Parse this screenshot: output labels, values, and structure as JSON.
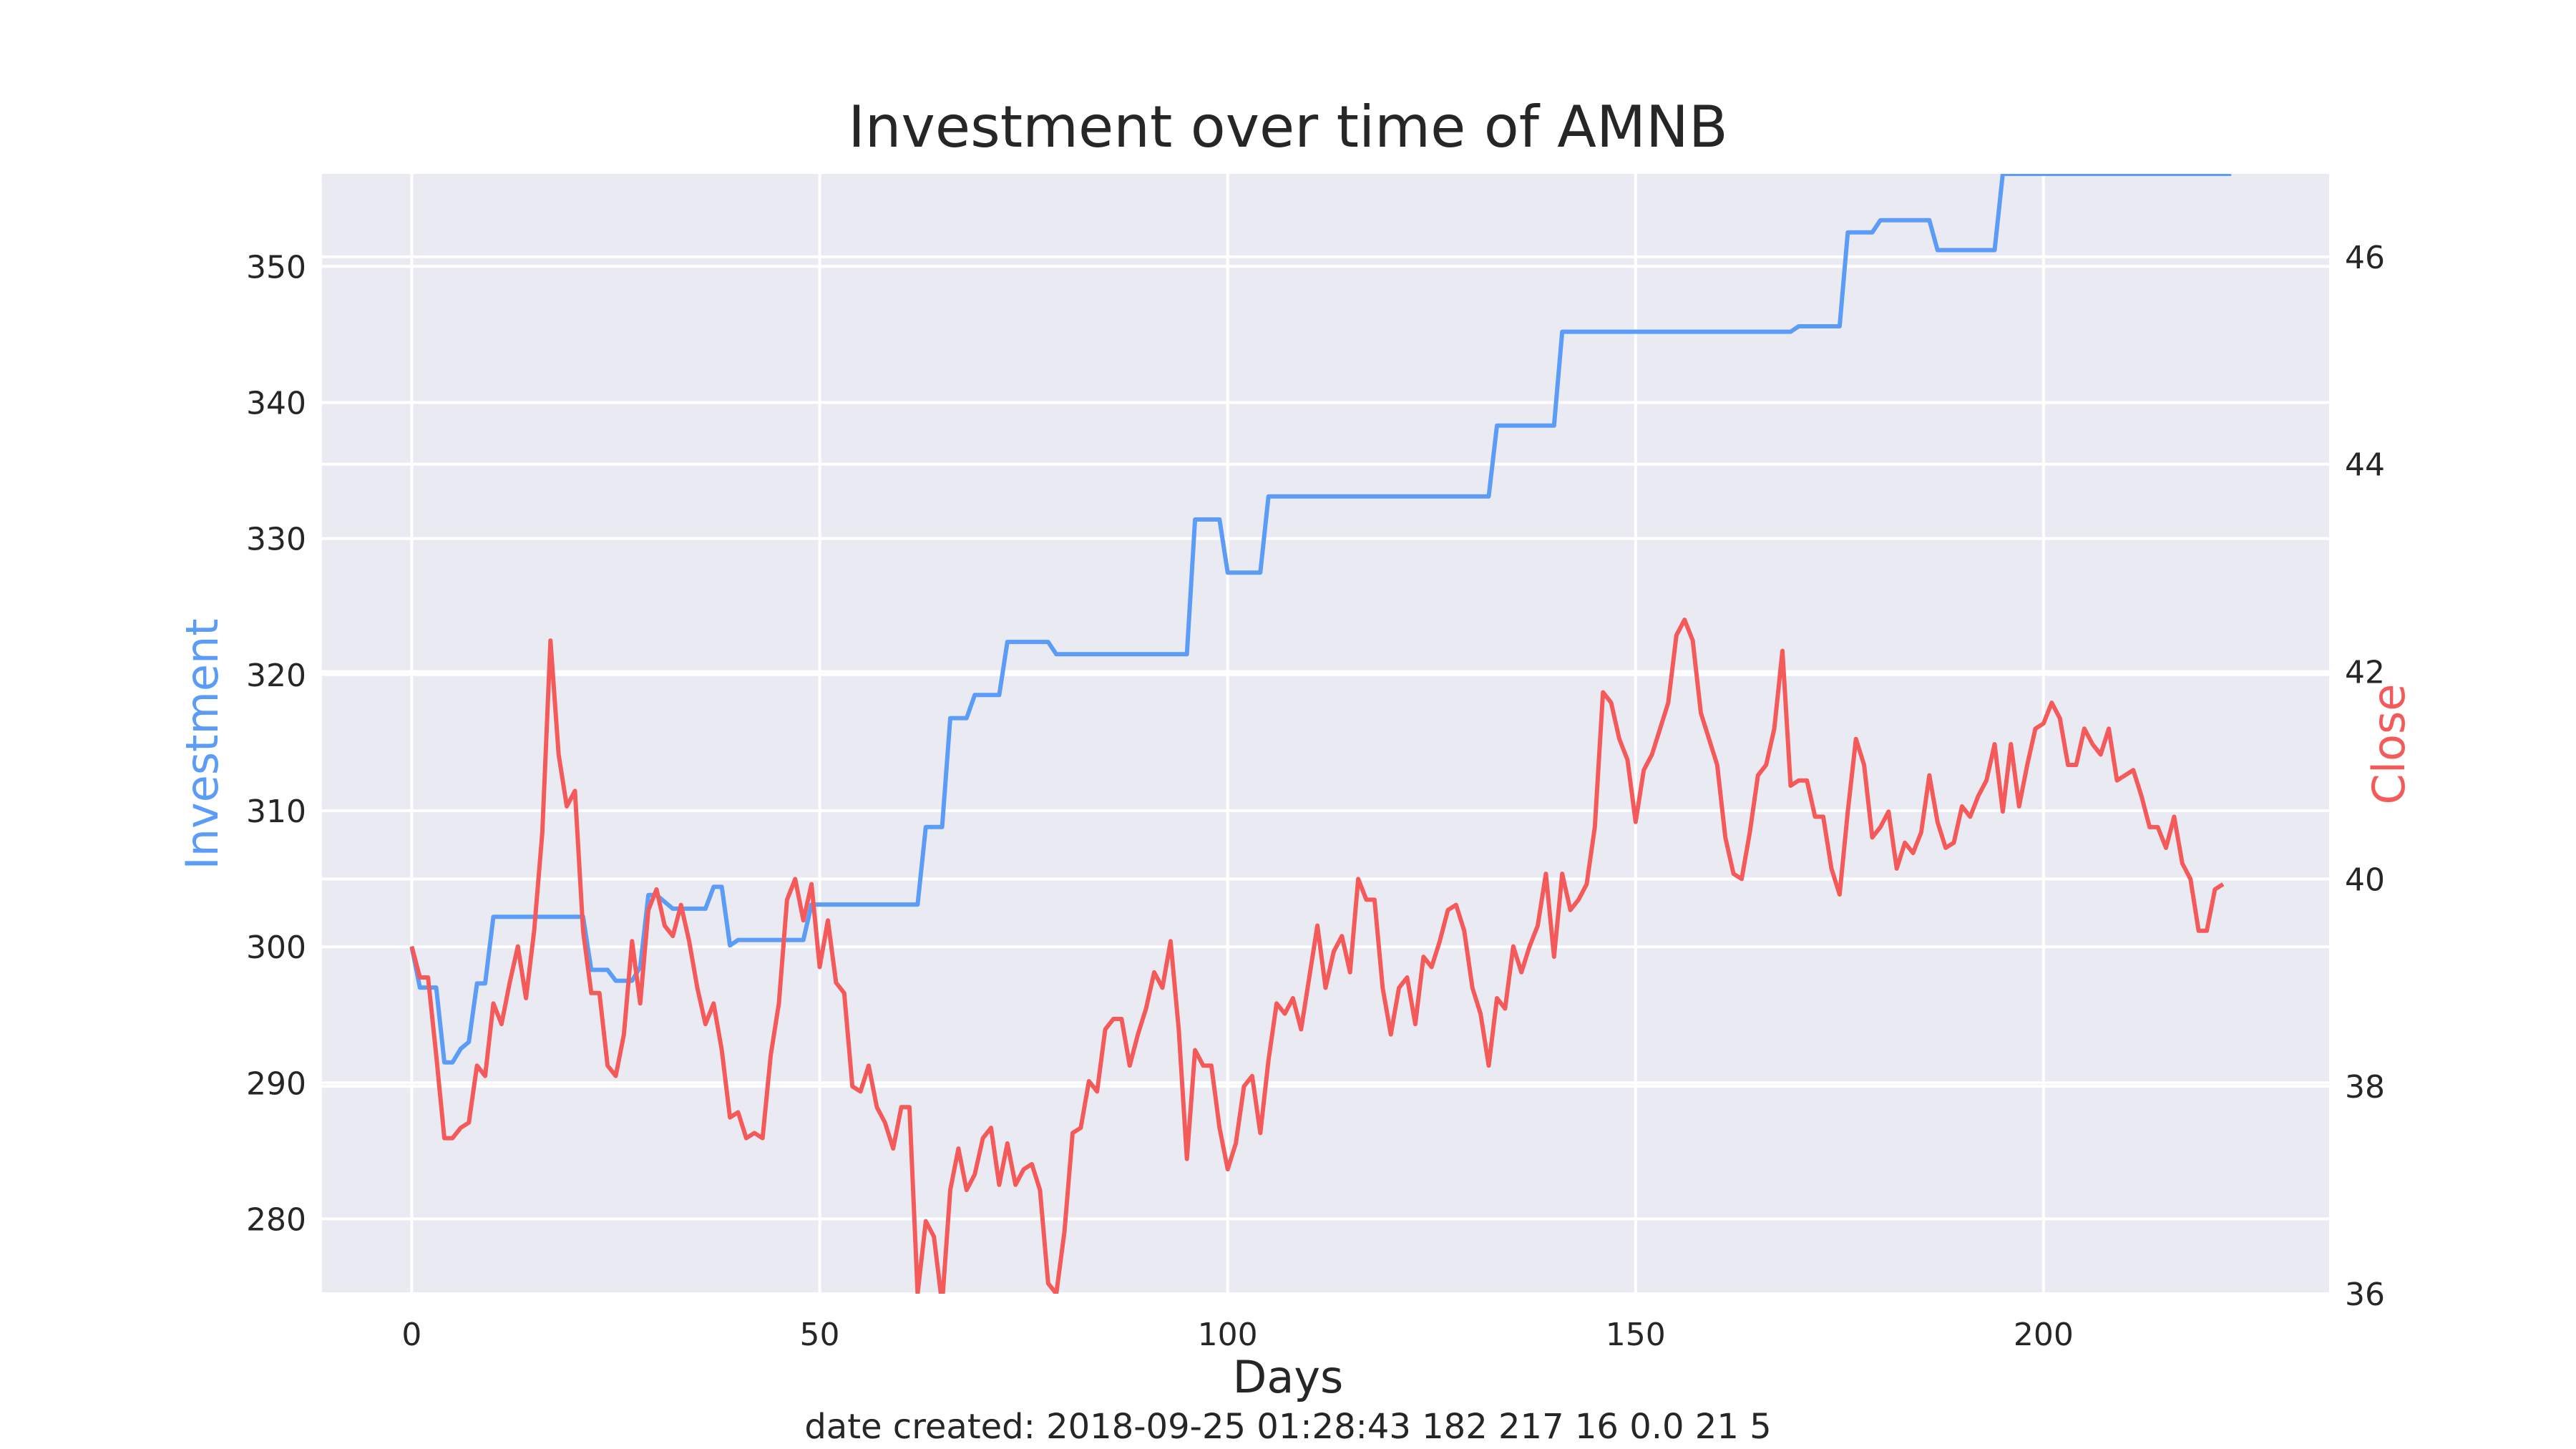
{
  "colors": {
    "investment": "#5b9cf6",
    "close": "#f55a5a",
    "plot_bg": "#eaeaf2",
    "grid": "#ffffff"
  },
  "footer_text": "date created: 2018-09-25 01:28:43 182 217 16 0.0 21 5",
  "chart_data": {
    "type": "line",
    "title": "Investment over time of AMNB",
    "xlabel": "Days",
    "ylabel_left": "Investment",
    "ylabel_right": "Close",
    "xlim": [
      -11,
      235
    ],
    "ylim_left": [
      274.5,
      356.8
    ],
    "ylim_right": [
      36.0,
      46.8
    ],
    "x_ticks": [
      0,
      50,
      100,
      150,
      200
    ],
    "y_left_ticks": [
      280,
      290,
      300,
      310,
      320,
      330,
      340,
      350
    ],
    "y_right_ticks": [
      36,
      38,
      40,
      42,
      44,
      46
    ],
    "grid": true,
    "series": [
      {
        "name": "Investment",
        "axis": "left",
        "points": [
          [
            0,
            300
          ],
          [
            1,
            297
          ],
          [
            3,
            297
          ],
          [
            4,
            291.5
          ],
          [
            5,
            291.5
          ],
          [
            6,
            292.5
          ],
          [
            7,
            293
          ],
          [
            8,
            297.3
          ],
          [
            9,
            297.3
          ],
          [
            10,
            302.2
          ],
          [
            21,
            302.2
          ],
          [
            22,
            298.3
          ],
          [
            24,
            298.3
          ],
          [
            25,
            297.5
          ],
          [
            27,
            297.5
          ],
          [
            28,
            298.5
          ],
          [
            29,
            303.8
          ],
          [
            30,
            303.8
          ],
          [
            32,
            302.8
          ],
          [
            36,
            302.8
          ],
          [
            37,
            304.4
          ],
          [
            38,
            304.4
          ],
          [
            39,
            300.1
          ],
          [
            40,
            300.5
          ],
          [
            48,
            300.5
          ],
          [
            49,
            303.1
          ],
          [
            62,
            303.1
          ],
          [
            63,
            308.8
          ],
          [
            65,
            308.8
          ],
          [
            66,
            316.8
          ],
          [
            68,
            316.8
          ],
          [
            69,
            318.5
          ],
          [
            72,
            318.5
          ],
          [
            73,
            322.4
          ],
          [
            78,
            322.4
          ],
          [
            79,
            321.5
          ],
          [
            95,
            321.5
          ],
          [
            96,
            331.4
          ],
          [
            99,
            331.4
          ],
          [
            100,
            327.5
          ],
          [
            104,
            327.5
          ],
          [
            105,
            333.1
          ],
          [
            132,
            333.1
          ],
          [
            133,
            338.3
          ],
          [
            140,
            338.3
          ],
          [
            141,
            345.2
          ],
          [
            169,
            345.2
          ],
          [
            170,
            345.6
          ],
          [
            175,
            345.6
          ],
          [
            176,
            352.5
          ],
          [
            179,
            352.5
          ],
          [
            180,
            353.4
          ],
          [
            186,
            353.4
          ],
          [
            187,
            351.2
          ],
          [
            194,
            351.2
          ],
          [
            195,
            356.8
          ],
          [
            223,
            356.8
          ]
        ]
      },
      {
        "name": "Close",
        "axis": "right",
        "points": [
          [
            0,
            39.35
          ],
          [
            1,
            39.05
          ],
          [
            2,
            39.05
          ],
          [
            3,
            38.3
          ],
          [
            4,
            37.5
          ],
          [
            5,
            37.5
          ],
          [
            6,
            37.6
          ],
          [
            7,
            37.65
          ],
          [
            8,
            38.2
          ],
          [
            9,
            38.1
          ],
          [
            10,
            38.8
          ],
          [
            11,
            38.6
          ],
          [
            12,
            39.0
          ],
          [
            13,
            39.35
          ],
          [
            14,
            38.85
          ],
          [
            15,
            39.5
          ],
          [
            16,
            40.45
          ],
          [
            17,
            42.3
          ],
          [
            18,
            41.2
          ],
          [
            19,
            40.7
          ],
          [
            20,
            40.85
          ],
          [
            21,
            39.5
          ],
          [
            22,
            38.9
          ],
          [
            23,
            38.9
          ],
          [
            24,
            38.2
          ],
          [
            25,
            38.1
          ],
          [
            26,
            38.5
          ],
          [
            27,
            39.4
          ],
          [
            28,
            38.8
          ],
          [
            29,
            39.7
          ],
          [
            30,
            39.9
          ],
          [
            31,
            39.55
          ],
          [
            32,
            39.45
          ],
          [
            33,
            39.75
          ],
          [
            34,
            39.4
          ],
          [
            35,
            38.95
          ],
          [
            36,
            38.6
          ],
          [
            37,
            38.8
          ],
          [
            38,
            38.35
          ],
          [
            39,
            37.7
          ],
          [
            40,
            37.75
          ],
          [
            41,
            37.5
          ],
          [
            42,
            37.55
          ],
          [
            43,
            37.5
          ],
          [
            44,
            38.3
          ],
          [
            45,
            38.8
          ],
          [
            46,
            39.8
          ],
          [
            47,
            40.0
          ],
          [
            48,
            39.6
          ],
          [
            49,
            39.95
          ],
          [
            50,
            39.15
          ],
          [
            51,
            39.6
          ],
          [
            52,
            39.0
          ],
          [
            53,
            38.9
          ],
          [
            54,
            38.0
          ],
          [
            55,
            37.95
          ],
          [
            56,
            38.2
          ],
          [
            57,
            37.8
          ],
          [
            58,
            37.65
          ],
          [
            59,
            37.4
          ],
          [
            60,
            37.8
          ],
          [
            61,
            37.8
          ],
          [
            62,
            36.0
          ],
          [
            63,
            36.7
          ],
          [
            64,
            36.55
          ],
          [
            65,
            35.9
          ],
          [
            66,
            37.0
          ],
          [
            67,
            37.4
          ],
          [
            68,
            37.0
          ],
          [
            69,
            37.15
          ],
          [
            70,
            37.5
          ],
          [
            71,
            37.6
          ],
          [
            72,
            37.05
          ],
          [
            73,
            37.45
          ],
          [
            74,
            37.05
          ],
          [
            75,
            37.2
          ],
          [
            76,
            37.25
          ],
          [
            77,
            37.0
          ],
          [
            78,
            36.1
          ],
          [
            79,
            36.0
          ],
          [
            80,
            36.6
          ],
          [
            81,
            37.55
          ],
          [
            82,
            37.6
          ],
          [
            83,
            38.05
          ],
          [
            84,
            37.95
          ],
          [
            85,
            38.55
          ],
          [
            86,
            38.65
          ],
          [
            87,
            38.65
          ],
          [
            88,
            38.2
          ],
          [
            89,
            38.5
          ],
          [
            90,
            38.75
          ],
          [
            91,
            39.1
          ],
          [
            92,
            38.95
          ],
          [
            93,
            39.4
          ],
          [
            94,
            38.55
          ],
          [
            95,
            37.3
          ],
          [
            96,
            38.35
          ],
          [
            97,
            38.2
          ],
          [
            98,
            38.2
          ],
          [
            99,
            37.6
          ],
          [
            100,
            37.2
          ],
          [
            101,
            37.45
          ],
          [
            102,
            38.0
          ],
          [
            103,
            38.1
          ],
          [
            104,
            37.55
          ],
          [
            105,
            38.25
          ],
          [
            106,
            38.8
          ],
          [
            107,
            38.7
          ],
          [
            108,
            38.85
          ],
          [
            109,
            38.55
          ],
          [
            110,
            39.05
          ],
          [
            111,
            39.55
          ],
          [
            112,
            38.95
          ],
          [
            113,
            39.3
          ],
          [
            114,
            39.45
          ],
          [
            115,
            39.1
          ],
          [
            116,
            40.0
          ],
          [
            117,
            39.8
          ],
          [
            118,
            39.8
          ],
          [
            119,
            38.95
          ],
          [
            120,
            38.5
          ],
          [
            121,
            38.95
          ],
          [
            122,
            39.05
          ],
          [
            123,
            38.6
          ],
          [
            124,
            39.25
          ],
          [
            125,
            39.15
          ],
          [
            126,
            39.4
          ],
          [
            127,
            39.7
          ],
          [
            128,
            39.75
          ],
          [
            129,
            39.5
          ],
          [
            130,
            38.95
          ],
          [
            131,
            38.7
          ],
          [
            132,
            38.2
          ],
          [
            133,
            38.85
          ],
          [
            134,
            38.75
          ],
          [
            135,
            39.35
          ],
          [
            136,
            39.1
          ],
          [
            137,
            39.35
          ],
          [
            138,
            39.55
          ],
          [
            139,
            40.05
          ],
          [
            140,
            39.25
          ],
          [
            141,
            40.05
          ],
          [
            142,
            39.7
          ],
          [
            143,
            39.8
          ],
          [
            144,
            39.95
          ],
          [
            145,
            40.5
          ],
          [
            146,
            41.8
          ],
          [
            147,
            41.7
          ],
          [
            148,
            41.35
          ],
          [
            149,
            41.15
          ],
          [
            150,
            40.55
          ],
          [
            151,
            41.05
          ],
          [
            152,
            41.2
          ],
          [
            153,
            41.45
          ],
          [
            154,
            41.7
          ],
          [
            155,
            42.35
          ],
          [
            156,
            42.5
          ],
          [
            157,
            42.3
          ],
          [
            158,
            41.6
          ],
          [
            159,
            41.35
          ],
          [
            160,
            41.1
          ],
          [
            161,
            40.4
          ],
          [
            162,
            40.05
          ],
          [
            163,
            40.0
          ],
          [
            164,
            40.45
          ],
          [
            165,
            41.0
          ],
          [
            166,
            41.1
          ],
          [
            167,
            41.45
          ],
          [
            168,
            42.2
          ],
          [
            169,
            40.9
          ],
          [
            170,
            40.95
          ],
          [
            171,
            40.95
          ],
          [
            172,
            40.6
          ],
          [
            173,
            40.6
          ],
          [
            174,
            40.1
          ],
          [
            175,
            39.85
          ],
          [
            176,
            40.65
          ],
          [
            177,
            41.35
          ],
          [
            178,
            41.1
          ],
          [
            179,
            40.4
          ],
          [
            180,
            40.5
          ],
          [
            181,
            40.65
          ],
          [
            182,
            40.1
          ],
          [
            183,
            40.35
          ],
          [
            184,
            40.25
          ],
          [
            185,
            40.45
          ],
          [
            186,
            41.0
          ],
          [
            187,
            40.55
          ],
          [
            188,
            40.3
          ],
          [
            189,
            40.35
          ],
          [
            190,
            40.7
          ],
          [
            191,
            40.6
          ],
          [
            192,
            40.8
          ],
          [
            193,
            40.95
          ],
          [
            194,
            41.3
          ],
          [
            195,
            40.65
          ],
          [
            196,
            41.3
          ],
          [
            197,
            40.7
          ],
          [
            198,
            41.1
          ],
          [
            199,
            41.45
          ],
          [
            200,
            41.5
          ],
          [
            201,
            41.7
          ],
          [
            202,
            41.55
          ],
          [
            203,
            41.1
          ],
          [
            204,
            41.1
          ],
          [
            205,
            41.45
          ],
          [
            206,
            41.3
          ],
          [
            207,
            41.2
          ],
          [
            208,
            41.45
          ],
          [
            209,
            40.95
          ],
          [
            210,
            41.0
          ],
          [
            211,
            41.05
          ],
          [
            212,
            40.8
          ],
          [
            213,
            40.5
          ],
          [
            214,
            40.5
          ],
          [
            215,
            40.3
          ],
          [
            216,
            40.6
          ],
          [
            217,
            40.15
          ],
          [
            218,
            40.0
          ],
          [
            219,
            39.5
          ],
          [
            220,
            39.5
          ],
          [
            221,
            39.9
          ],
          [
            222,
            39.95
          ]
        ]
      }
    ]
  }
}
